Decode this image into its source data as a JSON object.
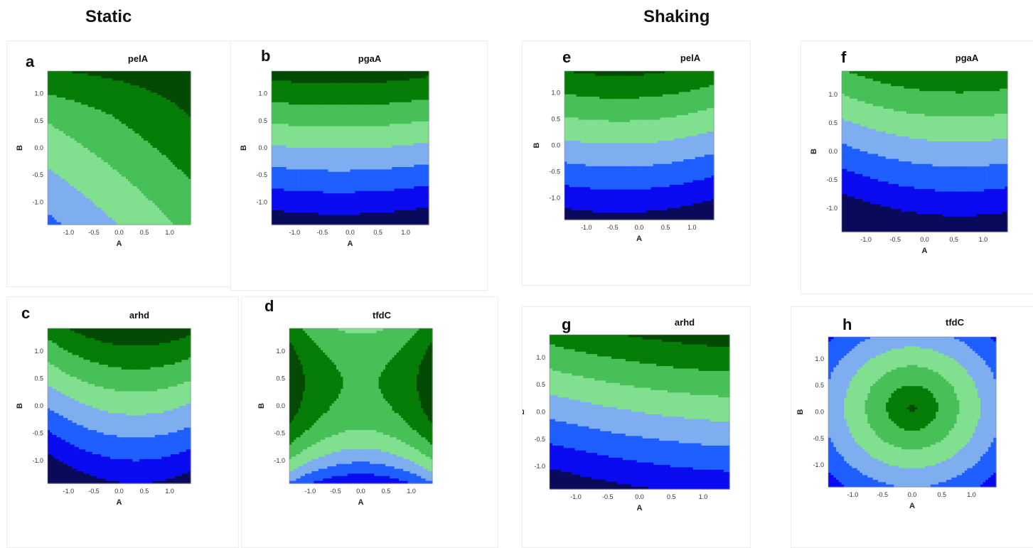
{
  "headings": {
    "static": "Static",
    "shaking": "Shaking"
  },
  "colors": {
    "levels": [
      "#0a0a5a",
      "#0b0bf0",
      "#1f5fff",
      "#7eaef0",
      "#80e090",
      "#48c058",
      "#067d06",
      "#044a04"
    ]
  },
  "chart_data": [
    {
      "id": "a",
      "type": "contour",
      "letter": "a",
      "title": "pelA",
      "xlabel": "A",
      "ylabel": "B",
      "xlim": [
        -1.414,
        1.414
      ],
      "ylim": [
        -1.414,
        1.414
      ],
      "xticks": [
        "-1.0",
        "-0.5",
        "0.0",
        "0.5",
        "1.0"
      ],
      "yticks": [
        "-1.0",
        "-0.5",
        "0.0",
        "0.5",
        "1.0"
      ]
    },
    {
      "id": "b",
      "type": "contour",
      "letter": "b",
      "title": "pgaA",
      "xlabel": "A",
      "ylabel": "B",
      "xlim": [
        -1.414,
        1.414
      ],
      "ylim": [
        -1.414,
        1.414
      ],
      "xticks": [
        "-1.0",
        "-0.5",
        "0.0",
        "0.5",
        "1.0"
      ],
      "yticks": [
        "-1.0",
        "-0.5",
        "0.0",
        "0.5",
        "1.0"
      ]
    },
    {
      "id": "c",
      "type": "contour",
      "letter": "c",
      "title": "arhd",
      "xlabel": "A",
      "ylabel": "B",
      "xlim": [
        -1.414,
        1.414
      ],
      "ylim": [
        -1.414,
        1.414
      ],
      "xticks": [
        "-1.0",
        "-0.5",
        "0.0",
        "0.5",
        "1.0"
      ],
      "yticks": [
        "-1.0",
        "-0.5",
        "0.0",
        "0.5",
        "1.0"
      ]
    },
    {
      "id": "d",
      "type": "contour",
      "letter": "d",
      "title": "tfdC",
      "xlabel": "A",
      "ylabel": "B",
      "xlim": [
        -1.414,
        1.414
      ],
      "ylim": [
        -1.414,
        1.414
      ],
      "xticks": [
        "-1.0",
        "-0.5",
        "0.0",
        "0.5",
        "1.0"
      ],
      "yticks": [
        "-1.0",
        "-0.5",
        "0.0",
        "0.5",
        "1.0"
      ]
    },
    {
      "id": "e",
      "type": "contour",
      "letter": "e",
      "title": "pelA",
      "xlabel": "A",
      "ylabel": "B",
      "xlim": [
        -1.414,
        1.414
      ],
      "ylim": [
        -1.414,
        1.414
      ],
      "xticks": [
        "-1.0",
        "-0.5",
        "0.0",
        "0.5",
        "1.0"
      ],
      "yticks": [
        "-1.0",
        "-0.5",
        "0.0",
        "0.5",
        "1.0"
      ]
    },
    {
      "id": "f",
      "type": "contour",
      "letter": "f",
      "title": "pgaA",
      "xlabel": "A",
      "ylabel": "B",
      "xlim": [
        -1.414,
        1.414
      ],
      "ylim": [
        -1.414,
        1.414
      ],
      "xticks": [
        "-1.0",
        "-0.5",
        "0.0",
        "0.5",
        "1.0"
      ],
      "yticks": [
        "-1.0",
        "-0.5",
        "0.0",
        "0.5",
        "1.0"
      ]
    },
    {
      "id": "g",
      "type": "contour",
      "letter": "g",
      "title": "arhd",
      "xlabel": "A",
      "ylabel": "B",
      "xlim": [
        -1.414,
        1.414
      ],
      "ylim": [
        -1.414,
        1.414
      ],
      "xticks": [
        "-1.0",
        "-0.5",
        "0.0",
        "0.5",
        "1.0"
      ],
      "yticks": [
        "-1.0",
        "-0.5",
        "0.0",
        "0.5",
        "1.0"
      ]
    },
    {
      "id": "h",
      "type": "contour",
      "letter": "h",
      "title": "tfdC",
      "xlabel": "A",
      "ylabel": "B",
      "xlim": [
        -1.414,
        1.414
      ],
      "ylim": [
        -1.414,
        1.414
      ],
      "xticks": [
        "-1.0",
        "-0.5",
        "0.0",
        "0.5",
        "1.0"
      ],
      "yticks": [
        "-1.0",
        "-0.5",
        "0.0",
        "0.5",
        "1.0"
      ]
    }
  ]
}
